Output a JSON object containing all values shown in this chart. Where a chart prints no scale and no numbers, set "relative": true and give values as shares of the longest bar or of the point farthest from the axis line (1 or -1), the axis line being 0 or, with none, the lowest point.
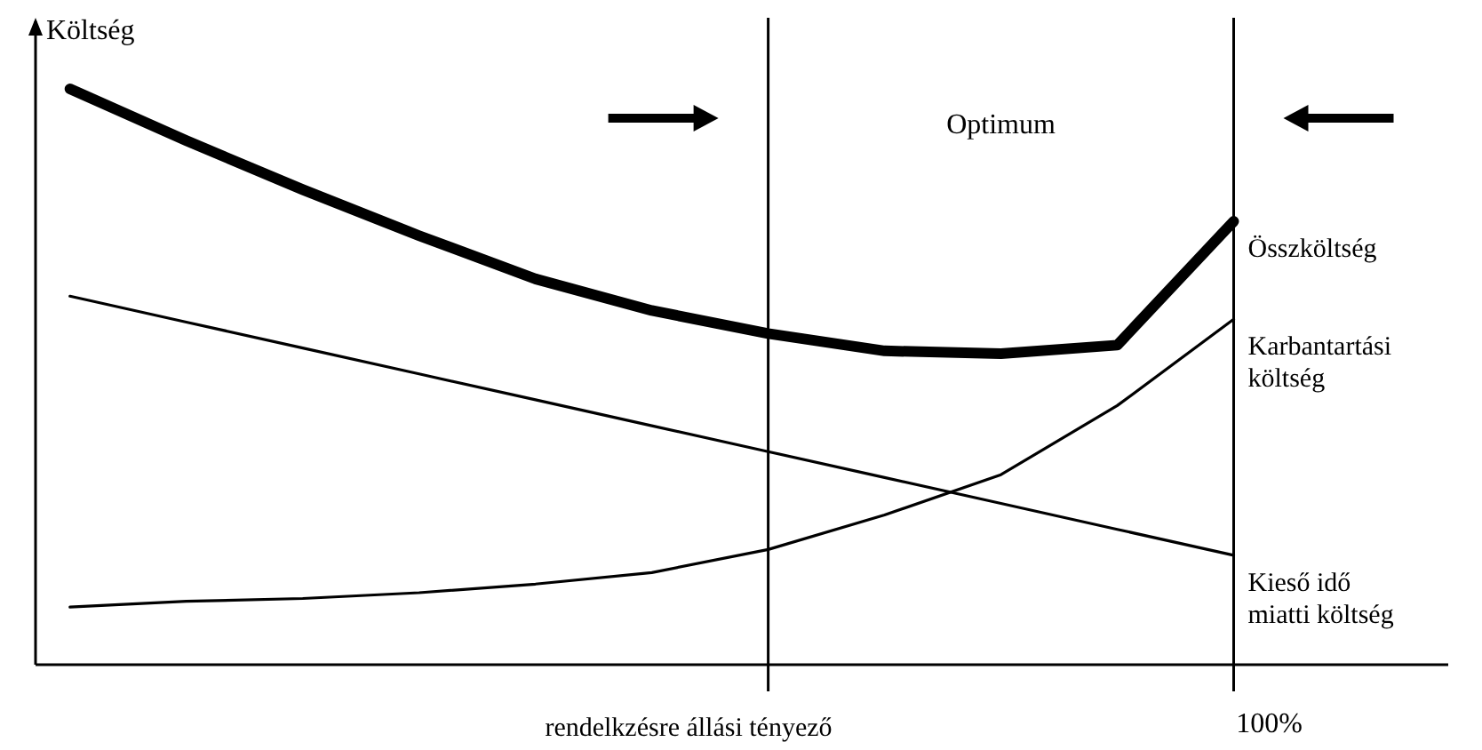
{
  "chart_data": {
    "type": "line",
    "relative": true,
    "ylabel": "Költség",
    "xlabel": "rendelkzésre állási tényező",
    "line_style": "solid",
    "annotations": [
      "Optimum",
      "100%"
    ],
    "categories": [
      null,
      null,
      null,
      null,
      null,
      null,
      null,
      null,
      null,
      null,
      null
    ],
    "series": [
      {
        "name": "Összköltség",
        "color": "#000000",
        "values": [
          1.0,
          0.91,
          0.825,
          0.745,
          0.67,
          0.615,
          0.575,
          0.545,
          0.54,
          0.555,
          0.77
        ]
      },
      {
        "name": "Karbantartási költség",
        "color": "#000000",
        "values": [
          0.1,
          0.11,
          0.115,
          0.125,
          0.14,
          0.16,
          0.2,
          0.26,
          0.33,
          0.45,
          0.6
        ]
      },
      {
        "name": "Kieső idő miatti költség",
        "color": "#000000",
        "values": [
          0.64,
          0.595,
          0.55,
          0.505,
          0.46,
          0.415,
          0.37,
          0.325,
          0.28,
          0.235,
          0.19
        ]
      }
    ]
  }
}
